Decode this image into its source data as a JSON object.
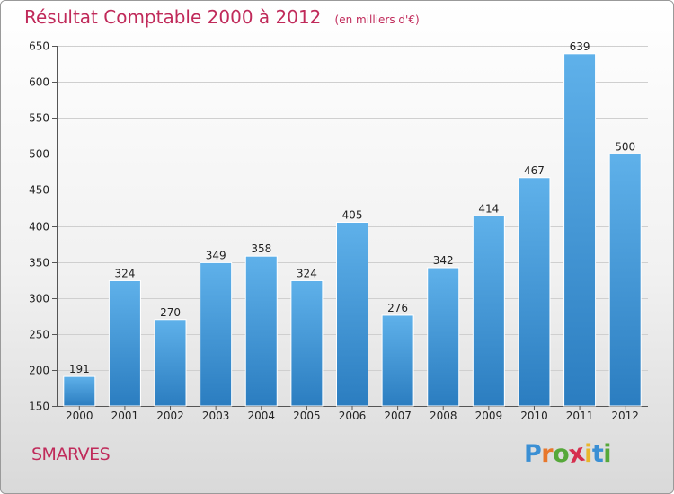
{
  "header": {
    "title": "Résultat Comptable 2000 à 2012",
    "subtitle": "(en milliers d'€)"
  },
  "footer": {
    "commune": "SMARVES",
    "logo_letters": [
      "P",
      "r",
      "o",
      "x",
      "i",
      "t",
      "i"
    ],
    "logo_colors": [
      "#3a8fd4",
      "#e8772b",
      "#56a83a",
      "#d62f4e",
      "#e9b62a",
      "#3a8fd4",
      "#56a83a"
    ]
  },
  "chart_data": {
    "type": "bar",
    "title": "Résultat Comptable 2000 à 2012",
    "subtitle": "(en milliers d'€)",
    "xlabel": "",
    "ylabel": "",
    "categories": [
      "2000",
      "2001",
      "2002",
      "2003",
      "2004",
      "2005",
      "2006",
      "2007",
      "2008",
      "2009",
      "2010",
      "2011",
      "2012"
    ],
    "values": [
      191,
      324,
      270,
      349,
      358,
      324,
      405,
      276,
      342,
      414,
      467,
      639,
      500
    ],
    "ylim": [
      150,
      650
    ],
    "yticks": [
      150,
      200,
      250,
      300,
      350,
      400,
      450,
      500,
      550,
      600,
      650
    ],
    "grid": true,
    "bar_color_top": "#5fb1ea",
    "bar_color_bottom": "#2b7dc0"
  }
}
